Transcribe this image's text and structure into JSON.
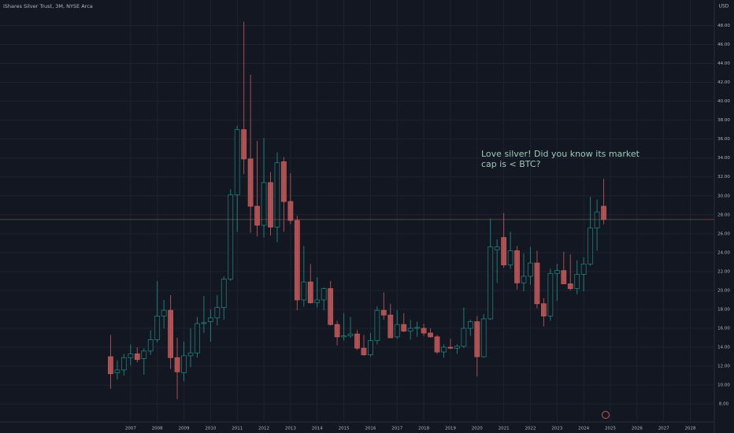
{
  "chart_data": {
    "type": "candlestick",
    "title": "iShares Silver Trust, 3M, NYSE Arca",
    "y_axis_unit": "USD",
    "annotation": [
      "Love silver! Did you know its market",
      "cap is < BTC?"
    ],
    "up_color": "#26a69a",
    "down_color": "#c0595b",
    "grid": true,
    "xlim": [
      2002.1,
      2028.9
    ],
    "xticks": [
      2007,
      2008,
      2009,
      2010,
      2011,
      2012,
      2013,
      2014,
      2015,
      2016,
      2017,
      2018,
      2019,
      2020,
      2021,
      2022,
      2023,
      2024,
      2025,
      2026,
      2027,
      2028
    ],
    "ylim": [
      6.1,
      50.7
    ],
    "yticks": [
      {
        "value": 8,
        "label": "8.00"
      },
      {
        "value": 10,
        "label": "10.00"
      },
      {
        "value": 12,
        "label": "12.00"
      },
      {
        "value": 14,
        "label": "14.00"
      },
      {
        "value": 16,
        "label": "16.00"
      },
      {
        "value": 18,
        "label": "18.00"
      },
      {
        "value": 20,
        "label": "20.00"
      },
      {
        "value": 22,
        "label": "22.00"
      },
      {
        "value": 24,
        "label": "24.00"
      },
      {
        "value": 26,
        "label": "26.00"
      },
      {
        "value": 28,
        "label": "28.00"
      },
      {
        "value": 30,
        "label": "30.00"
      },
      {
        "value": 32,
        "label": "32.00"
      },
      {
        "value": 34,
        "label": "34.00"
      },
      {
        "value": 36,
        "label": "36.00"
      },
      {
        "value": 38,
        "label": "38.00"
      },
      {
        "value": 40,
        "label": "40.00"
      },
      {
        "value": 42,
        "label": "42.00"
      },
      {
        "value": 44,
        "label": "44.00"
      },
      {
        "value": 46,
        "label": "46.00"
      },
      {
        "value": 48,
        "label": "48.00"
      }
    ],
    "x": [
      2006.25,
      2006.5,
      2006.75,
      2007.0,
      2007.25,
      2007.5,
      2007.75,
      2008.0,
      2008.25,
      2008.5,
      2008.75,
      2009.0,
      2009.25,
      2009.5,
      2009.75,
      2010.0,
      2010.25,
      2010.5,
      2010.75,
      2011.0,
      2011.25,
      2011.5,
      2011.75,
      2012.0,
      2012.25,
      2012.5,
      2012.75,
      2013.0,
      2013.25,
      2013.5,
      2013.75,
      2014.0,
      2014.25,
      2014.5,
      2014.75,
      2015.0,
      2015.25,
      2015.5,
      2015.75,
      2016.0,
      2016.25,
      2016.5,
      2016.75,
      2017.0,
      2017.25,
      2017.5,
      2017.75,
      2018.0,
      2018.25,
      2018.5,
      2018.75,
      2019.0,
      2019.25,
      2019.5,
      2019.75,
      2020.0,
      2020.25,
      2020.5,
      2020.75,
      2021.0,
      2021.25,
      2021.5,
      2021.75,
      2022.0,
      2022.25,
      2022.5,
      2022.75,
      2023.0,
      2023.25,
      2023.5,
      2023.75,
      2024.0,
      2024.25,
      2024.5,
      2024.75
    ],
    "open": [
      13.0,
      11.3,
      11.6,
      12.9,
      13.3,
      12.8,
      13.6,
      14.8,
      17.3,
      17.9,
      12.9,
      11.3,
      13.1,
      13.4,
      16.5,
      16.7,
      17.1,
      18.2,
      21.2,
      30.1,
      37.0,
      33.9,
      28.9,
      26.9,
      31.4,
      26.7,
      33.6,
      29.4,
      27.4,
      19.0,
      20.9,
      18.7,
      19.0,
      20.2,
      16.4,
      15.1,
      15.2,
      15.4,
      13.9,
      13.2,
      14.7,
      17.9,
      17.4,
      15.1,
      16.4,
      15.7,
      16.0,
      16.0,
      15.5,
      15.1,
      13.5,
      14.0,
      13.9,
      14.1,
      16.0,
      16.7,
      13.0,
      17.0,
      24.3,
      25.6,
      22.7,
      24.2,
      20.8,
      21.5,
      22.9,
      18.6,
      17.3,
      21.8,
      22.1,
      20.7,
      20.2,
      21.7,
      22.8,
      26.6,
      28.9
    ],
    "high": [
      15.3,
      12.6,
      13.3,
      14.3,
      14.0,
      13.9,
      15.8,
      21.0,
      19.0,
      19.5,
      15.0,
      14.6,
      16.0,
      17.2,
      19.4,
      18.0,
      19.5,
      21.5,
      30.7,
      37.4,
      48.4,
      42.8,
      35.8,
      36.1,
      32.5,
      34.6,
      34.1,
      32.4,
      27.9,
      24.7,
      22.8,
      21.4,
      20.3,
      21.0,
      16.8,
      17.6,
      17.2,
      15.8,
      15.3,
      15.5,
      18.3,
      19.8,
      18.6,
      17.9,
      17.6,
      16.9,
      16.7,
      16.5,
      16.0,
      15.3,
      14.3,
      14.9,
      14.3,
      18.2,
      16.9,
      17.3,
      17.5,
      27.6,
      25.4,
      28.2,
      26.2,
      24.7,
      23.9,
      24.6,
      24.2,
      19.2,
      22.3,
      22.8,
      24.1,
      23.8,
      23.2,
      23.5,
      29.9,
      29.6,
      31.8
    ],
    "low": [
      9.6,
      10.6,
      11.0,
      12.1,
      12.4,
      11.1,
      13.2,
      14.5,
      16.0,
      11.7,
      8.5,
      10.4,
      11.9,
      12.9,
      15.5,
      14.6,
      16.3,
      16.9,
      21.0,
      26.2,
      32.3,
      26.1,
      25.7,
      25.6,
      25.8,
      25.1,
      26.2,
      27.0,
      17.9,
      18.3,
      18.6,
      18.2,
      17.9,
      16.3,
      14.2,
      14.7,
      15.0,
      13.7,
      13.1,
      13.0,
      14.3,
      16.9,
      15.2,
      14.9,
      15.6,
      14.8,
      15.1,
      15.2,
      15.0,
      13.3,
      12.9,
      13.8,
      13.3,
      13.9,
      15.2,
      10.9,
      12.9,
      16.9,
      20.8,
      22.4,
      22.3,
      20.1,
      19.9,
      20.6,
      18.1,
      16.2,
      16.8,
      18.9,
      20.9,
      20.0,
      19.6,
      19.9,
      22.6,
      24.2,
      27.0
    ],
    "close": [
      11.2,
      11.6,
      12.9,
      13.3,
      12.7,
      13.6,
      14.8,
      17.3,
      17.9,
      12.9,
      11.4,
      13.1,
      13.4,
      16.5,
      16.6,
      17.1,
      18.2,
      21.2,
      30.1,
      37.0,
      33.9,
      28.9,
      26.9,
      31.4,
      26.7,
      33.5,
      29.4,
      27.4,
      19.0,
      20.9,
      18.7,
      19.0,
      20.2,
      16.4,
      15.1,
      15.2,
      15.4,
      13.9,
      13.2,
      14.7,
      17.9,
      17.4,
      15.0,
      16.4,
      15.7,
      16.0,
      16.1,
      15.5,
      15.1,
      13.5,
      14.0,
      13.9,
      14.1,
      16.0,
      16.7,
      13.0,
      17.0,
      24.6,
      24.6,
      22.7,
      24.2,
      20.8,
      21.5,
      22.9,
      18.6,
      17.3,
      21.8,
      22.1,
      20.7,
      20.2,
      21.7,
      22.8,
      26.6,
      28.3,
      27.5
    ]
  }
}
